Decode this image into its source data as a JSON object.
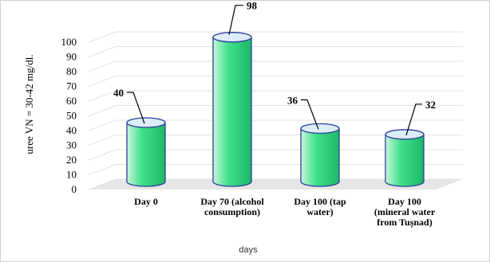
{
  "chart_data": {
    "type": "bar",
    "style": "3d-cylinder",
    "categories": [
      [
        "Day 0"
      ],
      [
        "Day 70 (alcohol",
        "consumption)"
      ],
      [
        "Day 100 (tap",
        "water)"
      ],
      [
        "Day 100",
        "(mineral water",
        "from Tușnad)"
      ]
    ],
    "values": [
      40,
      98,
      36,
      32
    ],
    "data_labels": [
      "40",
      "98",
      "36",
      "32"
    ],
    "xlabel": "days",
    "ylabel": "uree VN = 30-42 mg/dl.",
    "ylim": [
      0,
      100
    ],
    "yticks": [
      0,
      10,
      20,
      30,
      40,
      50,
      60,
      70,
      80,
      90,
      100
    ],
    "grid": true,
    "legend": "none",
    "colors": {
      "fill_light": "#c9f7dc",
      "fill_mid": "#3fe08a",
      "fill_dark": "#1db866",
      "outline": "#2a3e9c",
      "top_fill": "#dcecf8",
      "floor": "#e6e6e6",
      "grid": "#e3e3e3"
    }
  }
}
